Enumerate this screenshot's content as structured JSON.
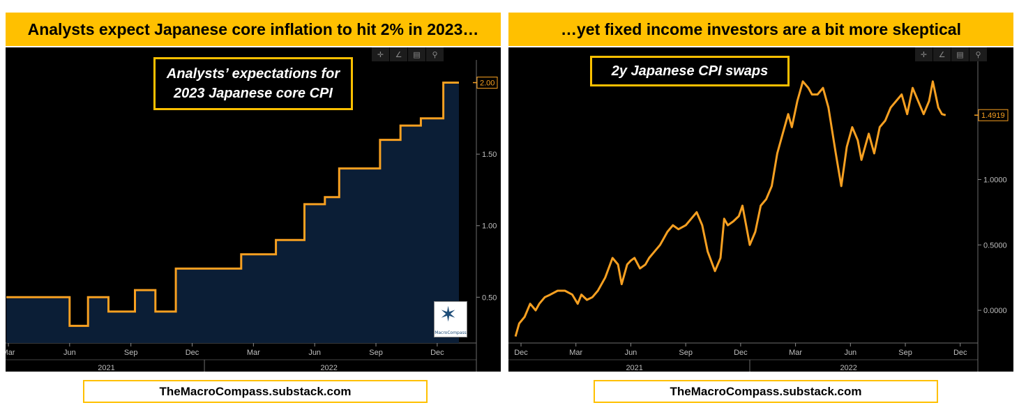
{
  "left": {
    "banner": "Analysts expect Japanese core inflation to hit 2% in 2023…",
    "annotation_line1": "Analysts’ expectations for",
    "annotation_line2": "2023 Japanese core CPI",
    "last_value_label": "2.00",
    "footer": "TheMacroCompass.substack.com",
    "logo_text": "MacroCompass"
  },
  "right": {
    "banner": "…yet fixed income investors are a bit more skeptical",
    "annotation": "2y Japanese CPI swaps",
    "last_value_label": "1.4919",
    "footer": "TheMacroCompass.substack.com"
  },
  "toolbar_icons": [
    "crosshair-icon",
    "draw-icon",
    "table-icon",
    "zoom-icon"
  ],
  "colors": {
    "line": "#F7A021",
    "fill": "#0B1E36",
    "banner": "#FFC000",
    "axis": "#BFBFBF"
  },
  "chart_data": [
    {
      "type": "area",
      "title": "Analysts’ expectations for 2023 Japanese core CPI",
      "x_range": [
        0,
        22.2
      ],
      "ylim": [
        0.18,
        2.1
      ],
      "y_ticks": [
        0.5,
        1.0,
        1.5
      ],
      "y_tick_labels": [
        "0.50",
        "1.00",
        "1.50"
      ],
      "month_ticks": [
        {
          "x": 0,
          "label": "Mar"
        },
        {
          "x": 3,
          "label": "Jun"
        },
        {
          "x": 6,
          "label": "Sep"
        },
        {
          "x": 9,
          "label": "Dec"
        },
        {
          "x": 12,
          "label": "Mar"
        },
        {
          "x": 15,
          "label": "Jun"
        },
        {
          "x": 18,
          "label": "Sep"
        },
        {
          "x": 21,
          "label": "Dec"
        }
      ],
      "year_labels": [
        {
          "x": 4.8,
          "label": "2021"
        },
        {
          "x": 15.7,
          "label": "2022"
        }
      ],
      "year_separators": [
        9.6
      ],
      "step_x": [
        -0.1,
        3.0,
        3.9,
        4.9,
        6.2,
        7.2,
        8.2,
        9.3,
        11.4,
        13.1,
        14.5,
        15.5,
        16.2,
        18.2,
        19.2,
        20.2,
        21.3
      ],
      "step_y": [
        0.5,
        0.3,
        0.5,
        0.4,
        0.55,
        0.4,
        0.7,
        0.7,
        0.8,
        0.9,
        1.15,
        1.2,
        1.4,
        1.6,
        1.7,
        1.75,
        2.0
      ],
      "last_value": 2.0
    },
    {
      "type": "line",
      "title": "2y Japanese CPI swaps",
      "x_range": [
        0,
        24.2
      ],
      "ylim": [
        -0.25,
        1.85
      ],
      "y_ticks": [
        0.0,
        0.5,
        1.0
      ],
      "y_tick_labels": [
        "0.0000",
        "0.5000",
        "1.0000"
      ],
      "month_ticks": [
        {
          "x": 0,
          "label": "Dec"
        },
        {
          "x": 3,
          "label": "Mar"
        },
        {
          "x": 6,
          "label": "Jun"
        },
        {
          "x": 9,
          "label": "Sep"
        },
        {
          "x": 12,
          "label": "Dec"
        },
        {
          "x": 15,
          "label": "Mar"
        },
        {
          "x": 18,
          "label": "Jun"
        },
        {
          "x": 21,
          "label": "Sep"
        },
        {
          "x": 24,
          "label": "Dec"
        }
      ],
      "year_labels": [
        {
          "x": 6.2,
          "label": "2021"
        },
        {
          "x": 17.9,
          "label": "2022"
        }
      ],
      "year_separators": [
        12.5
      ],
      "x": [
        -0.3,
        -0.1,
        0.2,
        0.5,
        0.8,
        1.0,
        1.3,
        1.6,
        2.0,
        2.4,
        2.8,
        3.1,
        3.3,
        3.6,
        3.9,
        4.2,
        4.6,
        5.0,
        5.3,
        5.5,
        5.8,
        6.0,
        6.2,
        6.5,
        6.8,
        7.0,
        7.3,
        7.6,
        7.8,
        8.0,
        8.3,
        8.6,
        9.0,
        9.3,
        9.6,
        9.9,
        10.2,
        10.6,
        10.9,
        11.1,
        11.3,
        11.6,
        11.9,
        12.1,
        12.5,
        12.8,
        13.1,
        13.4,
        13.7,
        14.0,
        14.3,
        14.6,
        14.8,
        15.1,
        15.4,
        15.7,
        15.9,
        16.2,
        16.5,
        16.8,
        17.2,
        17.5,
        17.8,
        18.1,
        18.4,
        18.6,
        18.8,
        19.0,
        19.3,
        19.6,
        19.9,
        20.2,
        20.5,
        20.8,
        21.1,
        21.4,
        21.7,
        22.0,
        22.3,
        22.5,
        22.8,
        23.0,
        23.2
      ],
      "y": [
        -0.2,
        -0.1,
        -0.05,
        0.05,
        0.0,
        0.05,
        0.1,
        0.12,
        0.15,
        0.15,
        0.12,
        0.05,
        0.12,
        0.08,
        0.1,
        0.15,
        0.25,
        0.4,
        0.35,
        0.2,
        0.35,
        0.38,
        0.4,
        0.32,
        0.35,
        0.4,
        0.45,
        0.5,
        0.55,
        0.6,
        0.65,
        0.62,
        0.65,
        0.7,
        0.75,
        0.65,
        0.45,
        0.3,
        0.4,
        0.7,
        0.65,
        0.68,
        0.72,
        0.8,
        0.5,
        0.6,
        0.8,
        0.85,
        0.95,
        1.2,
        1.35,
        1.5,
        1.4,
        1.6,
        1.75,
        1.7,
        1.65,
        1.65,
        1.7,
        1.55,
        1.2,
        0.95,
        1.25,
        1.4,
        1.3,
        1.15,
        1.25,
        1.35,
        1.2,
        1.4,
        1.45,
        1.55,
        1.6,
        1.65,
        1.5,
        1.7,
        1.6,
        1.5,
        1.6,
        1.75,
        1.55,
        1.5,
        1.4919
      ],
      "last_value": 1.4919
    }
  ]
}
